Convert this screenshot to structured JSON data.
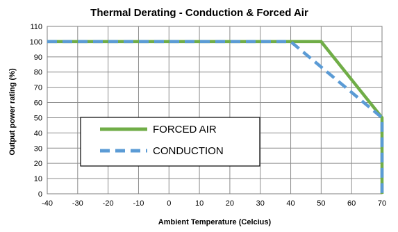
{
  "chart_data": {
    "type": "line",
    "title": "Thermal Derating - Conduction & Forced Air",
    "xlabel": "Ambient Temperature (Celcius)",
    "ylabel": "Output power rating (%)",
    "xlim": [
      -40,
      70
    ],
    "ylim": [
      0,
      110
    ],
    "xticks": [
      -40,
      -30,
      -20,
      -10,
      0,
      10,
      20,
      30,
      40,
      50,
      60,
      70
    ],
    "yticks": [
      0,
      10,
      20,
      30,
      40,
      50,
      60,
      70,
      80,
      90,
      100,
      110
    ],
    "grid": true,
    "legend_position": "lower-left",
    "series": [
      {
        "name": "FORCED AIR",
        "color": "#70ad47",
        "style": "solid",
        "x": [
          -40,
          50,
          70,
          70
        ],
        "y": [
          100,
          100,
          50,
          0
        ]
      },
      {
        "name": "CONDUCTION",
        "color": "#5b9bd5",
        "style": "dashed",
        "x": [
          -40,
          40,
          70,
          70
        ],
        "y": [
          100,
          100,
          50,
          0
        ]
      }
    ]
  }
}
